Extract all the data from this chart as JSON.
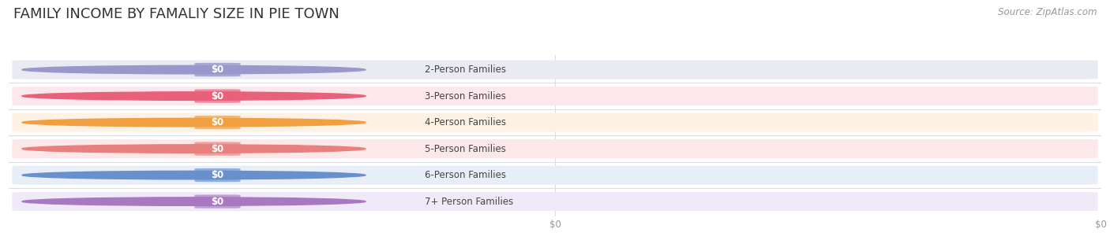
{
  "title": "FAMILY INCOME BY FAMALIY SIZE IN PIE TOWN",
  "source": "Source: ZipAtlas.com",
  "categories": [
    "2-Person Families",
    "3-Person Families",
    "4-Person Families",
    "5-Person Families",
    "6-Person Families",
    "7+ Person Families"
  ],
  "values": [
    0,
    0,
    0,
    0,
    0,
    0
  ],
  "bar_colors": [
    "#a8a8d0",
    "#f088a0",
    "#f5b870",
    "#f0a098",
    "#90b0e0",
    "#c0a0d0"
  ],
  "bar_bg_colors": [
    "#eaeaf2",
    "#fce8ec",
    "#fdf2e4",
    "#fce8e8",
    "#e8eef8",
    "#f0eaf8"
  ],
  "dot_colors": [
    "#9898cc",
    "#e8607a",
    "#f0a040",
    "#e88080",
    "#6890cc",
    "#a878c0"
  ],
  "label_color": "#444444",
  "value_label_color": "#ffffff",
  "title_color": "#333333",
  "source_color": "#999999",
  "background_color": "#ffffff",
  "grid_color": "#dddddd",
  "bar_height": 0.72,
  "title_fontsize": 13,
  "label_fontsize": 8.5,
  "value_fontsize": 8.5,
  "source_fontsize": 8.5,
  "xtick_labels": [
    "$0",
    "$0"
  ],
  "xtick_positions": [
    0.5,
    1.0
  ]
}
